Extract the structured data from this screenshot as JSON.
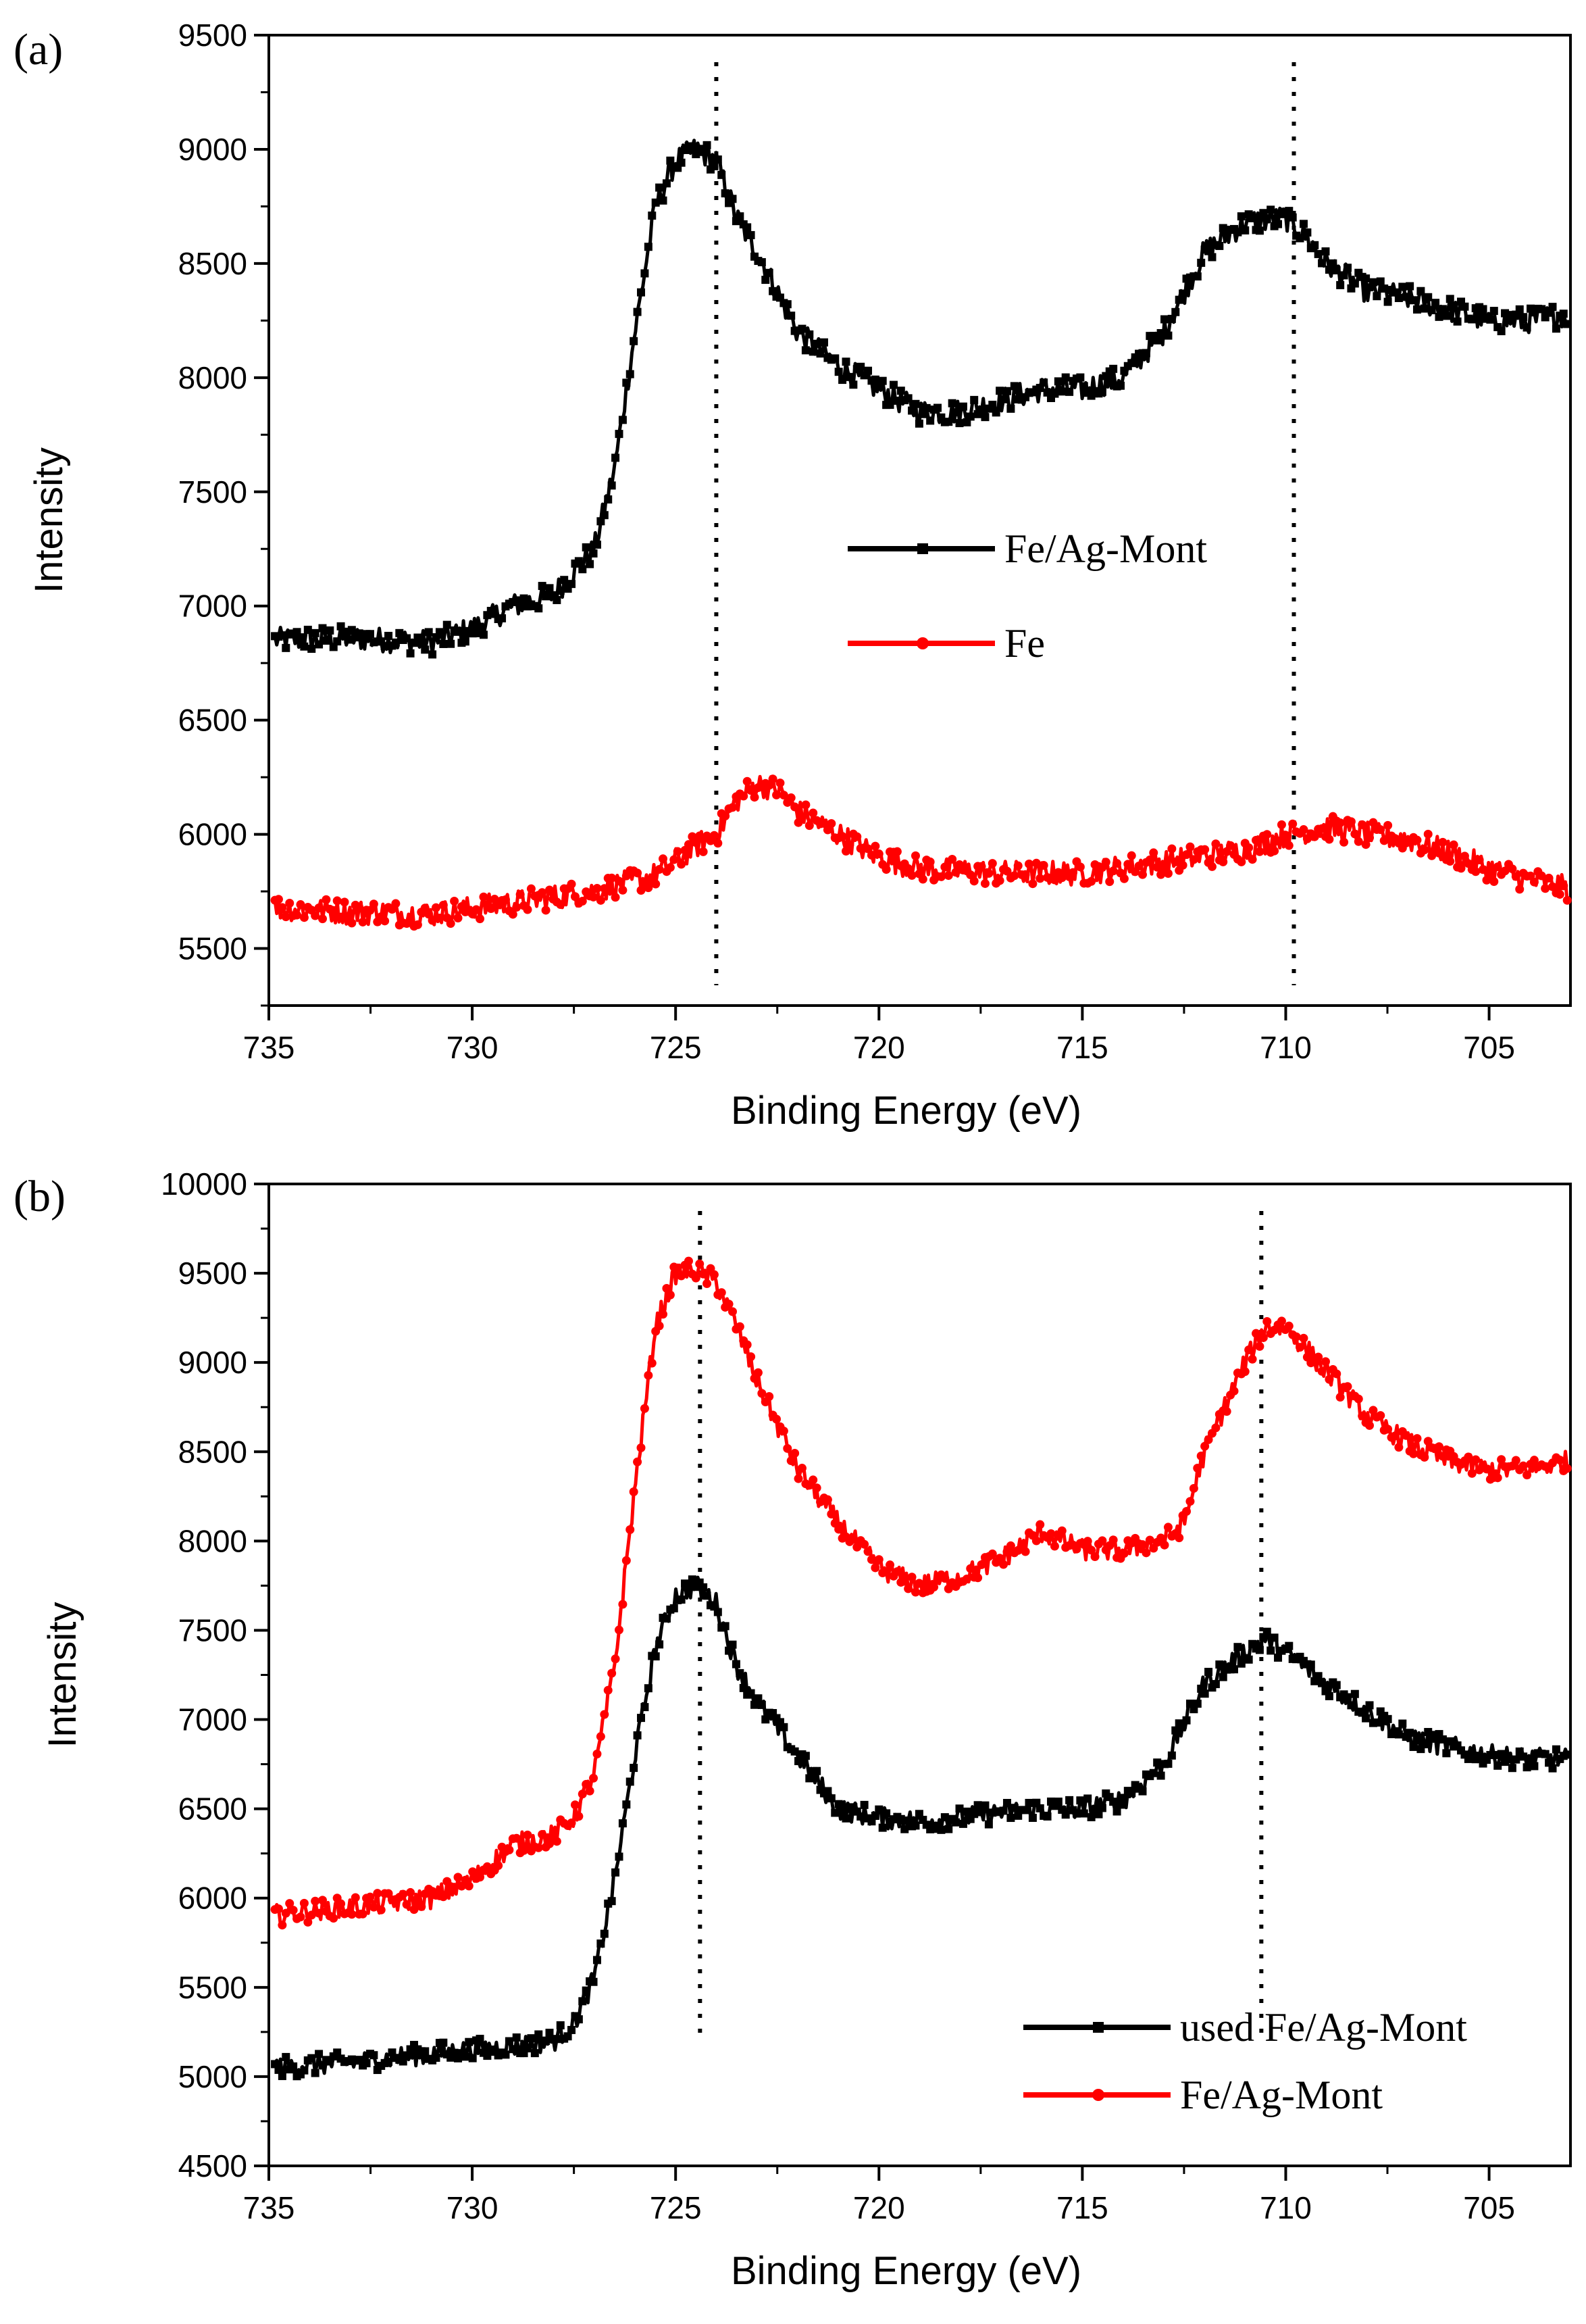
{
  "chart_data": [
    {
      "panel": "(a)",
      "type": "line",
      "xlabel": "Binding Energy (eV)",
      "ylabel": "Intensity",
      "xlim": [
        735,
        703
      ],
      "ylim": [
        5250,
        9500
      ],
      "xticks": [
        735,
        730,
        725,
        720,
        715,
        710,
        705
      ],
      "yticks": [
        5500,
        6000,
        6500,
        7000,
        7500,
        8000,
        8500,
        9000,
        9500
      ],
      "reference_lines": [
        724,
        709.8
      ],
      "legend_position": "center-right",
      "series": [
        {
          "name": "Fe/Ag-Mont",
          "color": "#000000",
          "marker": "square",
          "x": [
            735,
            733,
            731,
            730,
            729,
            728,
            727,
            726.5,
            726,
            725.5,
            725,
            724.5,
            724,
            723.5,
            723,
            722,
            721,
            720,
            719,
            718,
            717,
            716,
            715,
            714,
            713,
            712,
            711,
            710,
            709.5,
            709,
            708,
            707,
            706,
            705,
            704,
            703
          ],
          "y": [
            6850,
            6860,
            6840,
            6900,
            7000,
            7050,
            7250,
            7600,
            8200,
            8750,
            8950,
            9000,
            8950,
            8700,
            8550,
            8200,
            8050,
            7950,
            7850,
            7850,
            7900,
            7950,
            7950,
            8000,
            8200,
            8550,
            8680,
            8700,
            8620,
            8500,
            8380,
            8350,
            8300,
            8250,
            8250,
            8280
          ]
        },
        {
          "name": "Fe",
          "color": "#ff0000",
          "marker": "circle",
          "x": [
            735,
            733,
            731,
            729,
            727,
            725.5,
            724.5,
            724,
            723.5,
            723,
            722.5,
            722,
            721,
            720,
            719,
            717,
            715,
            713,
            711,
            710,
            709,
            708,
            707,
            706,
            705,
            704,
            703
          ],
          "y": [
            5680,
            5660,
            5650,
            5700,
            5750,
            5820,
            5950,
            6000,
            6150,
            6220,
            6200,
            6100,
            6000,
            5900,
            5850,
            5830,
            5830,
            5880,
            5930,
            6000,
            6030,
            6000,
            5980,
            5920,
            5850,
            5800,
            5760
          ]
        }
      ]
    },
    {
      "panel": "(b)",
      "type": "line",
      "xlabel": "Binding Energy (eV)",
      "ylabel": "Intensity",
      "xlim": [
        735,
        703
      ],
      "ylim": [
        4500,
        10000
      ],
      "xticks": [
        735,
        730,
        725,
        720,
        715,
        710,
        705
      ],
      "yticks": [
        4500,
        5000,
        5500,
        6000,
        6500,
        7000,
        7500,
        8000,
        8500,
        9000,
        9500,
        10000
      ],
      "reference_lines": [
        724.4,
        710.6
      ],
      "legend_position": "bottom-right",
      "series": [
        {
          "name": "used Fe/Ag-Mont",
          "color": "#000000",
          "marker": "square",
          "x": [
            735,
            733,
            731,
            729,
            728,
            727.5,
            727,
            726.5,
            726,
            725.5,
            725,
            724.5,
            724,
            723.5,
            723,
            722,
            721,
            720,
            719,
            718,
            717,
            716,
            715,
            714,
            713,
            712,
            711,
            710.5,
            710,
            709,
            708,
            707,
            706,
            705,
            704,
            703
          ],
          "y": [
            5050,
            5080,
            5130,
            5170,
            5200,
            5300,
            5550,
            6100,
            6800,
            7400,
            7700,
            7750,
            7650,
            7300,
            7100,
            6800,
            6500,
            6450,
            6430,
            6450,
            6480,
            6500,
            6500,
            6550,
            6750,
            7200,
            7380,
            7450,
            7380,
            7200,
            7050,
            6900,
            6850,
            6800,
            6780,
            6780
          ]
        },
        {
          "name": "Fe/Ag-Mont",
          "color": "#ff0000",
          "marker": "circle",
          "x": [
            735,
            733,
            731,
            730,
            729,
            728,
            727.5,
            727,
            726.5,
            726,
            725.5,
            725,
            724.5,
            724,
            723.5,
            723,
            722,
            721,
            720,
            719,
            718,
            717,
            716,
            715,
            714,
            713,
            712.5,
            712,
            711,
            710.5,
            710,
            709,
            708,
            707,
            706,
            705,
            704,
            703
          ],
          "y": [
            5900,
            5950,
            6000,
            6100,
            6300,
            6350,
            6450,
            6700,
            7300,
            8300,
            9200,
            9500,
            9520,
            9450,
            9200,
            8900,
            8400,
            8100,
            7850,
            7750,
            7800,
            7900,
            8050,
            7950,
            7950,
            8000,
            8100,
            8500,
            9000,
            9200,
            9200,
            8950,
            8700,
            8550,
            8450,
            8400,
            8400,
            8450
          ]
        }
      ]
    }
  ]
}
